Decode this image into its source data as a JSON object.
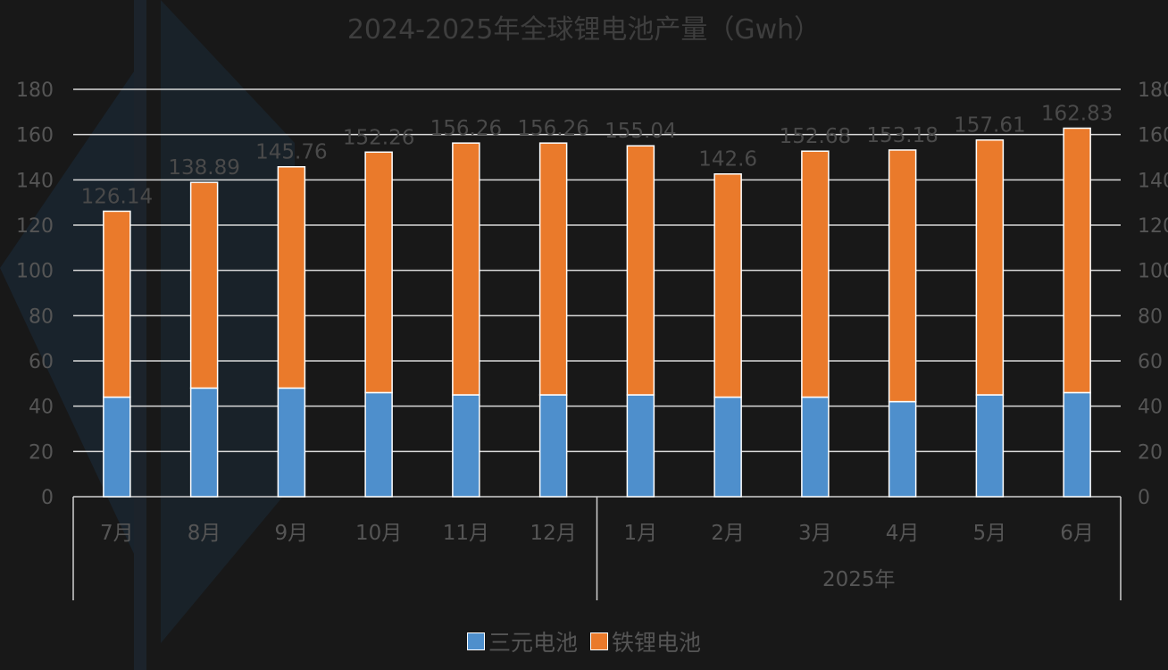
{
  "chart_data": {
    "type": "bar",
    "stacked": true,
    "title": "2024-2025年全球锂电池产量（Gwh）",
    "categories": [
      "7月",
      "8月",
      "9月",
      "10月",
      "11月",
      "12月",
      "1月",
      "2月",
      "3月",
      "4月",
      "5月",
      "6月"
    ],
    "category_groups": [
      {
        "label": "",
        "start": 0,
        "end": 5
      },
      {
        "label": "2025年",
        "start": 6,
        "end": 11
      }
    ],
    "series": [
      {
        "name": "三元电池",
        "color": "#4e8fcc",
        "values": [
          44,
          48,
          48,
          46,
          45,
          45,
          45,
          44,
          44,
          42,
          45,
          46
        ]
      },
      {
        "name": "铁锂电池",
        "color": "#ea7a2b",
        "values": [
          82.14,
          90.89,
          97.76,
          106.26,
          111.26,
          111.26,
          110.04,
          98.6,
          108.68,
          111.18,
          112.61,
          116.83
        ]
      }
    ],
    "totals": [
      "126.14",
      "138.89",
      "145.76",
      "152.26",
      "156.26",
      "156.26",
      "155.04",
      "142.6",
      "152.68",
      "153.18",
      "157.61",
      "162.83"
    ],
    "y_ticks": [
      "0",
      "20",
      "40",
      "60",
      "80",
      "100",
      "120",
      "140",
      "160",
      "180"
    ],
    "ylim": [
      0,
      180
    ],
    "grid": true,
    "legend_position": "bottom"
  }
}
